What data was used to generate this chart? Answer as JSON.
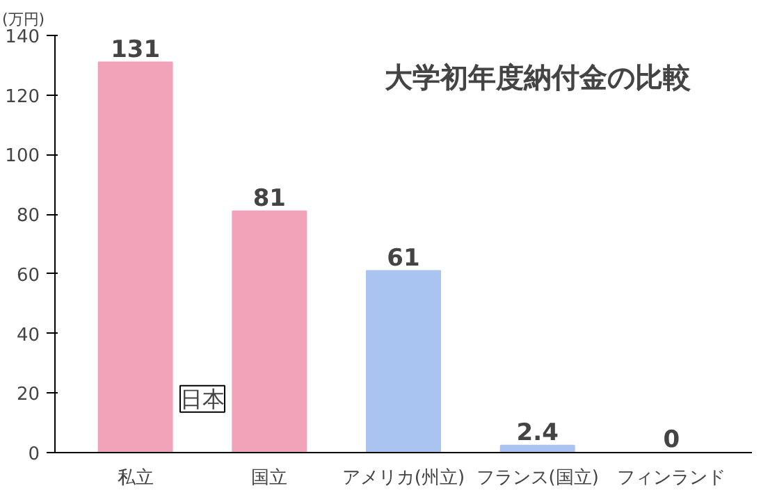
{
  "chart_data": {
    "type": "bar",
    "title": "大学初年度納付金の比較",
    "ylabel": "(万円)",
    "categories": [
      "私立",
      "国立",
      "アメリカ(州立)",
      "フランス(国立)",
      "フィンランド"
    ],
    "values": [
      131,
      81,
      61,
      2.4,
      0
    ],
    "colors": [
      "#f2a3b9",
      "#f2a3b9",
      "#a9c4f0",
      "#a9c4f0",
      "#a9c4f0"
    ],
    "ylim": [
      0,
      140
    ],
    "yticks": [
      0,
      20,
      40,
      60,
      80,
      100,
      120,
      140
    ],
    "data_labels": true,
    "grid": false,
    "annotations": [
      "日本"
    ]
  }
}
